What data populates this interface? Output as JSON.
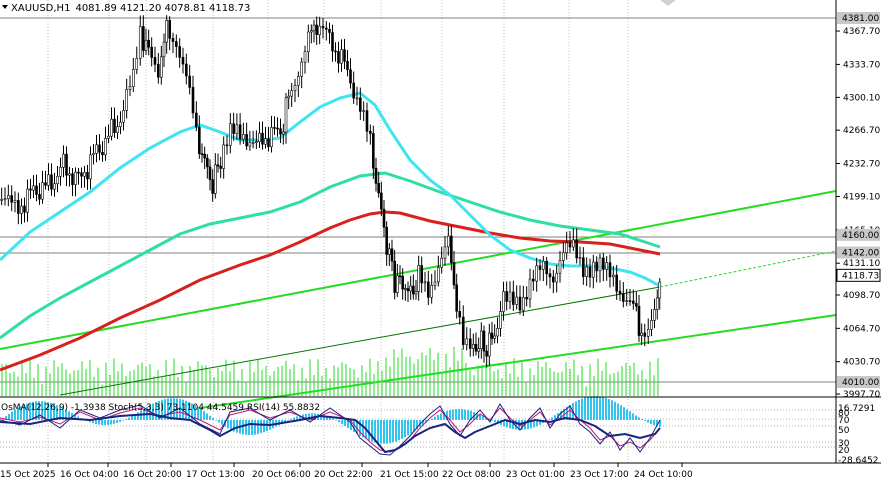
{
  "header": {
    "symbol": "XAUUSD,H1",
    "ohlc": "4081.89 4121.20 4078.81 4118.73"
  },
  "indicator_label": "OsMA(12,26,9) -1.3938  Stoch(5,3,3) 73.1104 44.5459  RSI(14) 55.8832",
  "chart_data": {
    "type": "candlestick",
    "symbol": "XAUUSD",
    "timeframe": "H1",
    "y_ticks": [
      4367.7,
      4333.7,
      4300.1,
      4266.7,
      4232.7,
      4199.1,
      4165.1,
      4131.1,
      4098.7,
      4064.7,
      4030.7,
      3997.7
    ],
    "x_ticks": [
      "15 Oct 2025",
      "16 Oct 04:00",
      "16 Oct 20:00",
      "17 Oct 13:00",
      "20 Oct 06:00",
      "20 Oct 22:00",
      "21 Oct 15:00",
      "22 Oct 08:00",
      "23 Oct 01:00",
      "23 Oct 17:00",
      "24 Oct 10:00"
    ],
    "highlighted_levels": [
      {
        "value": "4381.00",
        "style": "gray-box"
      },
      {
        "value": "4160.00",
        "style": "gray-box"
      },
      {
        "value": "4142.00",
        "style": "gray-box"
      },
      {
        "value": "4118.73",
        "style": "current-price"
      },
      {
        "value": "4010.00",
        "style": "gray-box"
      }
    ],
    "sub_y_ticks": [
      "16.7291",
      "-28.6452"
    ],
    "sub_right_labels": [
      "80",
      "70",
      "50",
      "30",
      "20"
    ],
    "ma_colors": {
      "ema200": "#d8201c",
      "ema144": "#2ee0a0",
      "ema50": "#3fe4f0",
      "channel": "#22dd22",
      "rsi": "#1a237e",
      "stoch_main": "#1a237e",
      "stoch_signal": "#c21875",
      "osma": "#33c4ee"
    }
  }
}
